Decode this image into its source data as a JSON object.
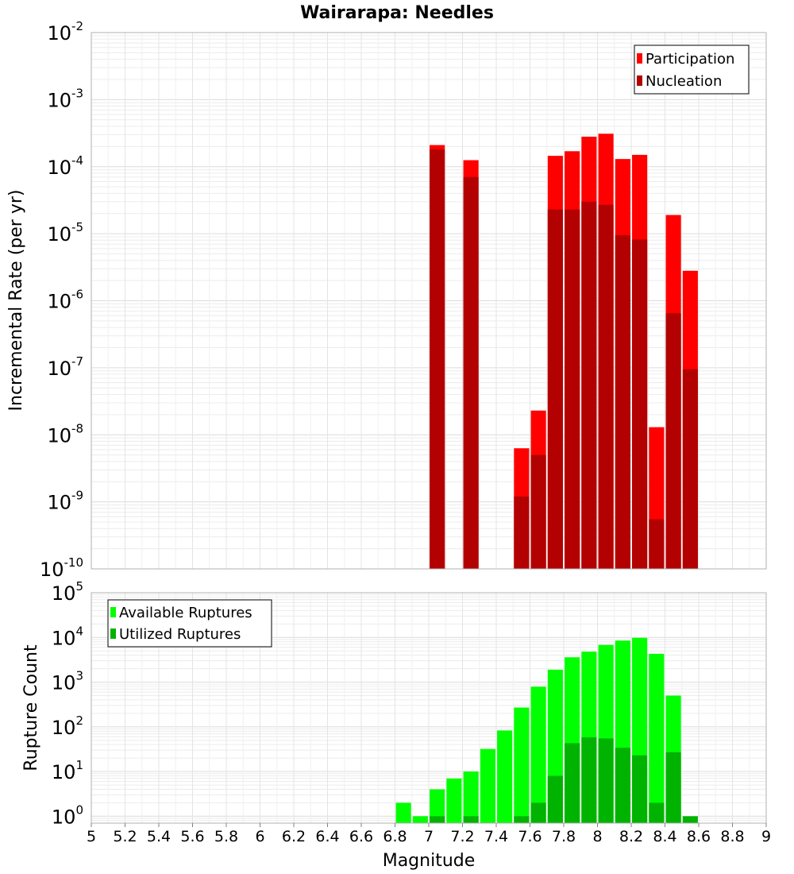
{
  "chart_data": [
    {
      "type": "bar",
      "title": "Wairarapa: Needles",
      "xlabel": "",
      "ylabel": "Incremental Rate (per yr)",
      "yscale": "log",
      "ylim": [
        1e-10,
        0.01
      ],
      "xlim": [
        5,
        9
      ],
      "grid": true,
      "legend_position": "top-right",
      "x": [
        7.05,
        7.25,
        7.55,
        7.65,
        7.75,
        7.85,
        7.95,
        8.05,
        8.15,
        8.25,
        8.35,
        8.45,
        8.55
      ],
      "series": [
        {
          "name": "Participation",
          "color": "#ff0000",
          "values": [
            0.00021,
            0.000125,
            6.3e-09,
            2.3e-08,
            0.000145,
            0.00017,
            0.00028,
            0.00031,
            0.00013,
            0.00015,
            1.3e-08,
            1.9e-05,
            2.8e-06
          ]
        },
        {
          "name": "Nucleation",
          "color": "#b30000",
          "values": [
            0.00018,
            7e-05,
            1.2e-09,
            5e-09,
            2.3e-05,
            2.3e-05,
            3e-05,
            2.7e-05,
            9.5e-06,
            8.2e-06,
            5.5e-10,
            6.5e-07,
            9.5e-08
          ]
        }
      ]
    },
    {
      "type": "bar",
      "title": "",
      "xlabel": "Magnitude",
      "ylabel": "Rupture Count",
      "yscale": "log",
      "ylim": [
        0.7,
        100000
      ],
      "xlim": [
        5,
        9
      ],
      "grid": true,
      "legend_position": "top-left",
      "x": [
        6.85,
        6.95,
        7.05,
        7.15,
        7.25,
        7.35,
        7.45,
        7.55,
        7.65,
        7.75,
        7.85,
        7.95,
        8.05,
        8.15,
        8.25,
        8.35,
        8.45,
        8.55
      ],
      "series": [
        {
          "name": "Available Ruptures",
          "color": "#00ff00",
          "values": [
            2,
            1,
            4,
            7,
            10,
            32,
            83,
            270,
            790,
            1900,
            3600,
            4800,
            6800,
            8500,
            9800,
            4300,
            500,
            0
          ]
        },
        {
          "name": "Utilized Ruptures",
          "color": "#00b300",
          "values": [
            0,
            0,
            1,
            0,
            1,
            0,
            0,
            1,
            2,
            8,
            43,
            58,
            55,
            34,
            23,
            2,
            27,
            1
          ]
        }
      ]
    }
  ],
  "x_ticks": [
    "5",
    "5.2",
    "5.4",
    "5.6",
    "5.8",
    "6",
    "6.2",
    "6.4",
    "6.6",
    "6.8",
    "7",
    "7.2",
    "7.4",
    "7.6",
    "7.8",
    "8",
    "8.2",
    "8.4",
    "8.6",
    "8.8",
    "9"
  ],
  "top_y_ticks": [
    {
      "base": "10",
      "exp": "-10",
      "value": 1e-10
    },
    {
      "base": "10",
      "exp": "-9",
      "value": 1e-09
    },
    {
      "base": "10",
      "exp": "-8",
      "value": 1e-08
    },
    {
      "base": "10",
      "exp": "-7",
      "value": 1e-07
    },
    {
      "base": "10",
      "exp": "-6",
      "value": 1e-06
    },
    {
      "base": "10",
      "exp": "-5",
      "value": 1e-05
    },
    {
      "base": "10",
      "exp": "-4",
      "value": 0.0001
    },
    {
      "base": "10",
      "exp": "-3",
      "value": 0.001
    },
    {
      "base": "10",
      "exp": "-2",
      "value": 0.01
    }
  ],
  "bottom_y_ticks": [
    {
      "base": "10",
      "exp": "0",
      "value": 1
    },
    {
      "base": "10",
      "exp": "1",
      "value": 10
    },
    {
      "base": "10",
      "exp": "2",
      "value": 100
    },
    {
      "base": "10",
      "exp": "3",
      "value": 1000
    },
    {
      "base": "10",
      "exp": "4",
      "value": 10000
    },
    {
      "base": "10",
      "exp": "5",
      "value": 100000
    }
  ]
}
